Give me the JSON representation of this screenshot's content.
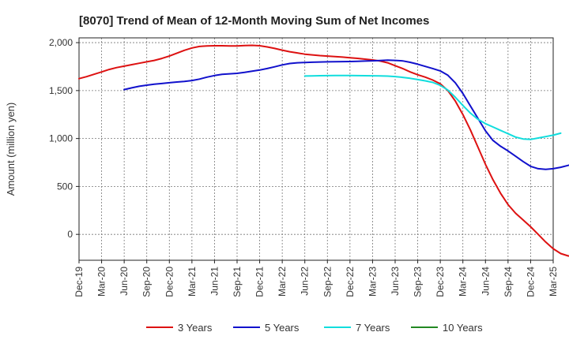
{
  "chart_data": {
    "type": "line",
    "title": "[8070]  Trend of Mean of 12-Month Moving Sum of Net Incomes",
    "xlabel": "",
    "ylabel": "Amount (million yen)",
    "ylim": [
      -270,
      2050
    ],
    "yticks": [
      0,
      500,
      1000,
      1500,
      2000
    ],
    "ytick_labels": [
      "0",
      "500",
      "1,000",
      "1,500",
      "2,000"
    ],
    "xticks": [
      "Dec-19",
      "Mar-20",
      "Jun-20",
      "Sep-20",
      "Dec-20",
      "Mar-21",
      "Jun-21",
      "Sep-21",
      "Dec-21",
      "Mar-22",
      "Jun-22",
      "Sep-22",
      "Dec-22",
      "Mar-23",
      "Jun-23",
      "Sep-23",
      "Dec-23",
      "Mar-24",
      "Jun-24",
      "Sep-24",
      "Dec-24",
      "Mar-25"
    ],
    "grid": true,
    "legend_position": "bottom",
    "series": [
      {
        "name": "3 Years",
        "color": "#dd1111",
        "start_index": 0,
        "values": [
          1625,
          1645,
          1670,
          1695,
          1720,
          1740,
          1755,
          1770,
          1785,
          1800,
          1815,
          1835,
          1860,
          1890,
          1920,
          1945,
          1960,
          1965,
          1968,
          1968,
          1966,
          1966,
          1970,
          1972,
          1968,
          1955,
          1940,
          1922,
          1905,
          1893,
          1880,
          1872,
          1865,
          1860,
          1855,
          1849,
          1843,
          1836,
          1828,
          1820,
          1808,
          1790,
          1760,
          1730,
          1695,
          1665,
          1640,
          1610,
          1570,
          1500,
          1390,
          1250,
          1090,
          910,
          730,
          570,
          430,
          310,
          220,
          150,
          80,
          0,
          -80,
          -150,
          -200,
          -225,
          -230,
          -225,
          -205,
          -175,
          -135
        ]
      },
      {
        "name": "5 Years",
        "color": "#1111cc",
        "start_index": 6,
        "values": [
          1510,
          1528,
          1545,
          1556,
          1566,
          1574,
          1582,
          1589,
          1595,
          1605,
          1620,
          1640,
          1657,
          1669,
          1675,
          1680,
          1690,
          1702,
          1714,
          1730,
          1748,
          1768,
          1783,
          1790,
          1793,
          1796,
          1798,
          1800,
          1801,
          1802,
          1803,
          1805,
          1808,
          1811,
          1814,
          1817,
          1815,
          1810,
          1795,
          1775,
          1752,
          1730,
          1705,
          1660,
          1580,
          1470,
          1340,
          1210,
          1080,
          980,
          920,
          870,
          815,
          760,
          710,
          685,
          678,
          685,
          700,
          720,
          745
        ]
      },
      {
        "name": "7 Years",
        "color": "#11dddd",
        "start_index": 30,
        "values": [
          1652,
          1653,
          1655,
          1656,
          1657,
          1657,
          1657,
          1656,
          1655,
          1654,
          1653,
          1651,
          1646,
          1638,
          1628,
          1615,
          1602,
          1585,
          1555,
          1505,
          1430,
          1345,
          1265,
          1200,
          1155,
          1120,
          1085,
          1050,
          1015,
          995,
          990,
          1005,
          1020,
          1035,
          1055
        ]
      },
      {
        "name": "10 Years",
        "color": "#228822",
        "start_index": 0,
        "values": []
      }
    ]
  }
}
